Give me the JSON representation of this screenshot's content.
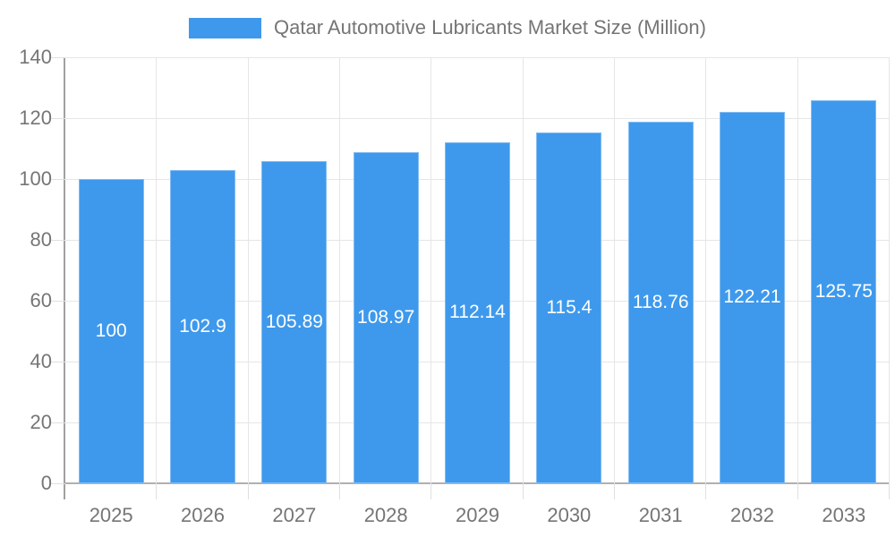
{
  "legend": {
    "label": "Qatar Automotive Lubricants Market Size (Million)"
  },
  "chart_data": {
    "type": "bar",
    "title": "Qatar Automotive Lubricants Market Size (Million)",
    "categories": [
      "2025",
      "2026",
      "2027",
      "2028",
      "2029",
      "2030",
      "2031",
      "2032",
      "2033"
    ],
    "values": [
      100,
      102.9,
      105.89,
      108.97,
      112.14,
      115.4,
      118.76,
      122.21,
      125.75
    ],
    "bar_labels": [
      "100",
      "102.9",
      "105.89",
      "108.97",
      "112.14",
      "115.4",
      "118.76",
      "122.21",
      "125.75"
    ],
    "xlabel": "",
    "ylabel": "",
    "ylim": [
      0,
      140
    ],
    "yticks": [
      0,
      20,
      40,
      60,
      80,
      100,
      120,
      140
    ],
    "grid": true,
    "legend_position": "top",
    "colors": {
      "bar": "#3e99ec",
      "bar_label": "#ffffff",
      "axis_text": "#757575",
      "grid": "#e6e6e6",
      "axis_line": "#a0a0a0",
      "baseline": "#b0b0b0"
    }
  }
}
